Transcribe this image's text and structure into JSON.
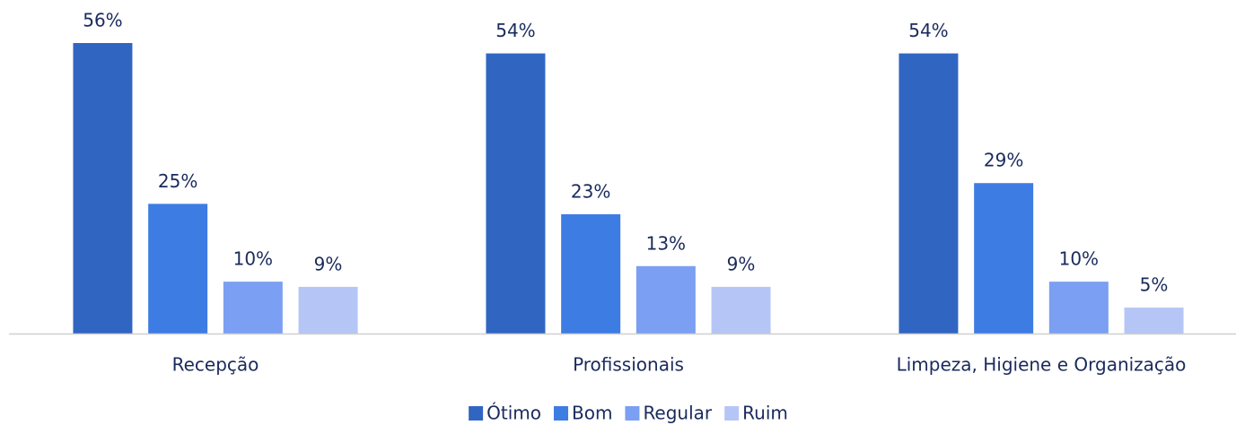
{
  "chart_data": {
    "type": "bar",
    "categories": [
      "Recepção",
      "Profissionais",
      "Limpeza, Higiene e Organização"
    ],
    "series": [
      {
        "name": "Ótimo",
        "color": "#3066c2",
        "values": [
          56,
          54,
          54
        ],
        "value_labels": [
          "56%",
          "54%",
          "54%"
        ]
      },
      {
        "name": "Bom",
        "color": "#3d7ce3",
        "values": [
          25,
          23,
          29
        ],
        "value_labels": [
          "25%",
          "23%",
          "29%"
        ]
      },
      {
        "name": "Regular",
        "color": "#7b9ff2",
        "values": [
          10,
          13,
          10
        ],
        "value_labels": [
          "10%",
          "13%",
          "10%"
        ]
      },
      {
        "name": "Ruim",
        "color": "#b5c6f6",
        "values": [
          9,
          9,
          5
        ],
        "value_labels": [
          "9%",
          "9%",
          "5%"
        ]
      }
    ],
    "legend": "bottom"
  }
}
